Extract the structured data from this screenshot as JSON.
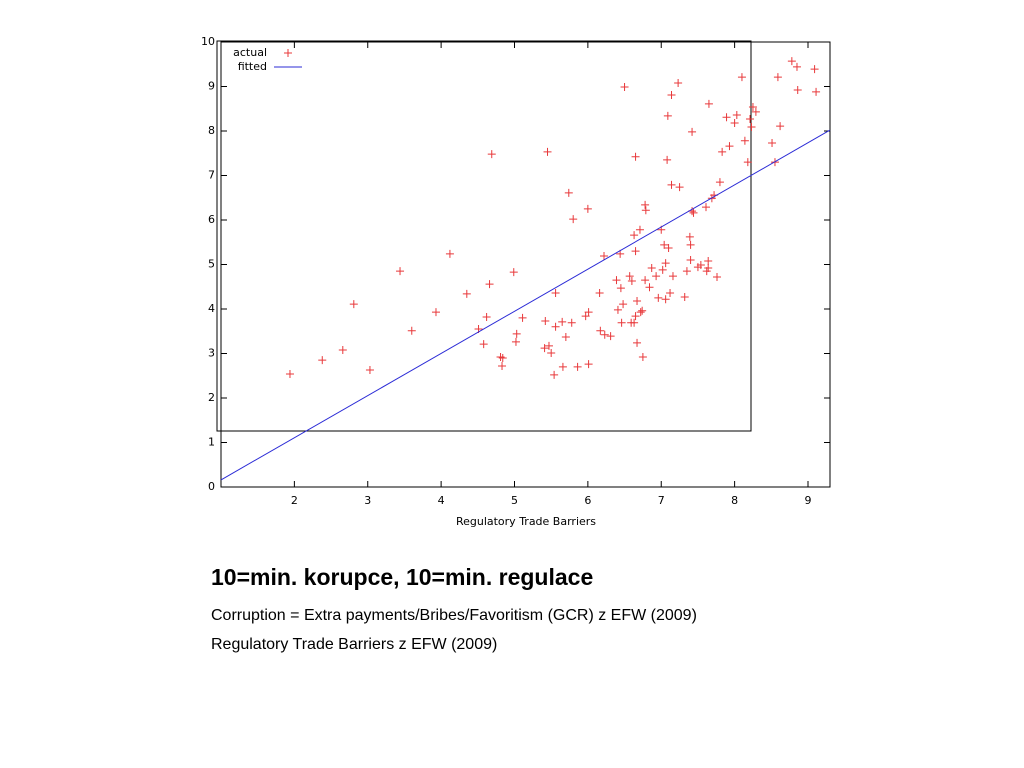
{
  "chart_data": {
    "type": "scatter",
    "xlabel": "Regulatory Trade Barriers",
    "xlim": [
      1,
      9.3
    ],
    "ylim": [
      0,
      10
    ],
    "xticks": [
      2,
      3,
      4,
      5,
      6,
      7,
      8,
      9
    ],
    "yticks": [
      0,
      1,
      2,
      3,
      4,
      5,
      6,
      7,
      8,
      9,
      10
    ],
    "legend": "top-left",
    "series": [
      {
        "name": "actual",
        "color": "#e8383a",
        "type": "scatter",
        "x": [
          1.94,
          2.38,
          2.66,
          2.81,
          3.03,
          3.44,
          3.6,
          3.93,
          4.12,
          4.35,
          4.51,
          4.58,
          4.62,
          4.66,
          4.69,
          4.81,
          4.83,
          4.84,
          4.99,
          5.02,
          5.03,
          5.11,
          5.41,
          5.42,
          5.45,
          5.47,
          5.5,
          5.54,
          5.56,
          5.56,
          5.65,
          5.66,
          5.7,
          5.74,
          5.78,
          5.8,
          5.86,
          5.97,
          6.0,
          6.01,
          6.01,
          6.16,
          6.17,
          6.22,
          6.23,
          6.31,
          6.39,
          6.41,
          6.44,
          6.45,
          6.46,
          6.48,
          6.5,
          6.57,
          6.59,
          6.6,
          6.63,
          6.63,
          6.65,
          6.65,
          6.65,
          6.67,
          6.67,
          6.71,
          6.72,
          6.74,
          6.75,
          6.78,
          6.78,
          6.79,
          6.84,
          6.87,
          6.93,
          6.96,
          7.0,
          7.02,
          7.04,
          7.06,
          7.06,
          7.08,
          7.09,
          7.1,
          7.12,
          7.14,
          7.14,
          7.16,
          7.23,
          7.25,
          7.32,
          7.35,
          7.39,
          7.4,
          7.42,
          7.4,
          7.42,
          7.44,
          7.5,
          7.54,
          7.61,
          7.62,
          7.64,
          7.64,
          7.65,
          7.69,
          7.72,
          7.76,
          7.8,
          7.83,
          7.89,
          7.93,
          8.0,
          8.03,
          8.1,
          8.14,
          8.18,
          8.21,
          8.23,
          8.25,
          8.29,
          8.51,
          8.55,
          8.59,
          8.62,
          8.78,
          8.85,
          8.86,
          9.09,
          9.11
        ],
        "values": [
          2.54,
          2.85,
          3.08,
          4.11,
          2.63,
          4.85,
          3.51,
          3.93,
          5.24,
          4.34,
          3.55,
          3.21,
          3.82,
          4.56,
          7.48,
          2.92,
          2.72,
          2.9,
          4.83,
          3.26,
          3.44,
          3.8,
          3.12,
          3.73,
          7.53,
          3.17,
          3.01,
          2.52,
          4.36,
          3.6,
          3.71,
          2.7,
          3.37,
          6.61,
          3.69,
          6.02,
          2.7,
          3.84,
          6.25,
          2.76,
          3.93,
          4.36,
          3.51,
          5.19,
          3.42,
          3.39,
          4.65,
          3.98,
          5.24,
          4.47,
          3.69,
          4.11,
          8.99,
          4.74,
          3.69,
          4.63,
          5.66,
          3.69,
          3.84,
          7.42,
          5.3,
          4.18,
          3.24,
          5.78,
          3.93,
          3.96,
          2.92,
          6.34,
          4.65,
          6.22,
          4.49,
          4.92,
          4.74,
          4.25,
          5.78,
          4.88,
          5.44,
          5.03,
          4.22,
          7.35,
          8.34,
          5.37,
          4.36,
          8.81,
          6.79,
          4.74,
          9.08,
          6.74,
          4.27,
          4.85,
          5.62,
          5.1,
          7.98,
          5.44,
          6.2,
          6.16,
          4.94,
          4.99,
          6.29,
          4.85,
          5.08,
          4.92,
          8.61,
          6.49,
          6.56,
          4.72,
          6.85,
          7.53,
          8.31,
          7.66,
          8.18,
          8.36,
          9.21,
          7.78,
          7.3,
          8.27,
          8.09,
          8.54,
          8.43,
          7.73,
          7.3,
          9.21,
          8.11,
          9.57,
          9.44,
          8.92,
          9.39,
          8.88
        ]
      },
      {
        "name": "fitted",
        "color": "#2b2bd6",
        "type": "line",
        "x": [
          1,
          9.3
        ],
        "values": [
          0.16,
          8.02
        ]
      }
    ]
  },
  "text": {
    "heading": "10=min. korupce, 10=min. regulace",
    "lines": [
      "Corruption = Extra payments/Bribes/Favoritism (GCR) z EFW (2009)",
      "Regulatory Trade Barriers z EFW (2009)"
    ]
  }
}
